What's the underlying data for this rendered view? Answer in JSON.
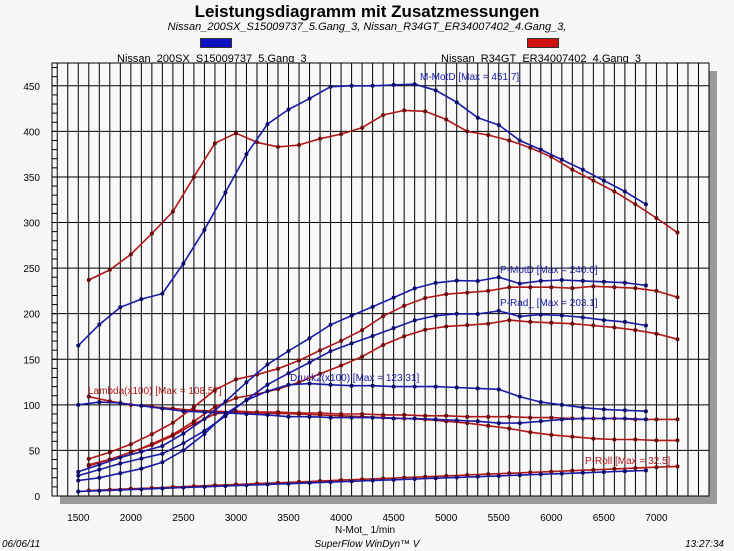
{
  "chart_data": {
    "type": "line",
    "title": "Leistungsdiagramm mit Zusatzmessungen",
    "subtitle": "Nissan_200SX_S15009737_5.Gang_3, Nissan_R34GT_ER34007402_4.Gang_3,",
    "xlabel": "N-Mot_ 1/min",
    "ylabel": "",
    "xlim": [
      1250,
      7500
    ],
    "ylim": [
      0,
      475
    ],
    "xticks": [
      1500,
      2000,
      2500,
      3000,
      3500,
      4000,
      4500,
      5000,
      5500,
      6000,
      6500,
      7000
    ],
    "yticks": [
      0,
      50,
      100,
      150,
      200,
      250,
      300,
      350,
      400,
      450
    ],
    "grid": true,
    "legend_position": "top",
    "datasets": [
      {
        "name": "Nissan_200SX_S15009737_5.Gang_3",
        "color": "#1a1aa8",
        "x": [
          1500,
          1700,
          1900,
          2100,
          2300,
          2500,
          2700,
          2900,
          3100,
          3300,
          3500,
          3700,
          3900,
          4100,
          4300,
          4500,
          4700,
          4900,
          5100,
          5300,
          5500,
          5700,
          5900,
          6100,
          6300,
          6500,
          6700,
          6900
        ],
        "series": [
          {
            "name": "M-MotD",
            "values": [
              165,
              188,
              207,
              216,
              222,
              255,
              292,
              333,
              375,
              408,
              424,
              436,
              449,
              450,
              450,
              451,
              451.7,
              445,
              432,
              415,
              407,
              390,
              380,
              369,
              358,
              346,
              334,
              320
            ]
          },
          {
            "name": "P-MotD",
            "values": [
              26.5,
              34.3,
              42.2,
              48.6,
              54.8,
              68.4,
              84.5,
              103.6,
              124.7,
              144.4,
              159.1,
              173,
              187.8,
              197.9,
              207.5,
              217.6,
              227.7,
              233.8,
              236.3,
              235.9,
              240,
              233,
              236,
              237,
              236,
              235,
              234,
              231
            ]
          },
          {
            "name": "P-Rad_",
            "values": [
              22.4,
              29,
              35.7,
              41.1,
              46.4,
              57.9,
              71.5,
              87.6,
              105.5,
              122.2,
              134.6,
              146.4,
              158.9,
              167.4,
              175.5,
              184.1,
              192.6,
              197.8,
              199.9,
              199.6,
              203.1,
              197,
              199,
              198,
              196,
              193,
              191,
              187
            ]
          },
          {
            "name": "Druck2(x100)",
            "values": [
              17,
              20,
              25,
              30,
              37,
              50,
              68,
              90,
              105,
              115,
              122,
              123.3,
              122,
              121,
              121,
              120,
              120,
              120,
              119,
              118,
              117,
              109,
              103,
              100,
              97,
              95,
              94,
              93
            ]
          },
          {
            "name": "Lambda(x100)",
            "values": [
              100,
              103,
              102,
              99,
              96,
              93,
              92,
              91,
              90,
              89,
              87,
              87,
              86,
              86,
              86,
              85,
              85,
              84,
              83,
              82,
              80,
              80,
              82,
              84,
              85,
              85,
              85,
              84
            ]
          },
          {
            "name": "P-Roll",
            "values": [
              5,
              5.8,
              6.7,
              7.5,
              8.4,
              9.3,
              10.1,
              11,
              11.8,
              12.7,
              13.5,
              14.4,
              15.2,
              16.1,
              17,
              17.8,
              18.7,
              19.5,
              20.4,
              21.2,
              22.1,
              22.9,
              23.8,
              24.6,
              25.5,
              26.3,
              27.2,
              28
            ]
          }
        ]
      },
      {
        "name": "Nissan_R34GT_ER34007402_4.Gang_3",
        "color": "#b01818",
        "x": [
          1600,
          1800,
          2000,
          2200,
          2400,
          2600,
          2800,
          3000,
          3200,
          3400,
          3600,
          3800,
          4000,
          4200,
          4400,
          4600,
          4800,
          5000,
          5200,
          5400,
          5600,
          5800,
          6000,
          6200,
          6400,
          6600,
          6800,
          7000,
          7200
        ],
        "series": [
          {
            "name": "M-MotD",
            "values": [
              237,
              248,
              265,
              288,
              312,
              350,
              387,
              398,
              388,
              383,
              385,
              392,
              397,
              404,
              418,
              423,
              422,
              413,
              400,
              396,
              390,
              382,
              372,
              358,
              346,
              334,
              320,
              305,
              289
            ]
          },
          {
            "name": "P-MotD",
            "values": [
              40.7,
              47.9,
              56.8,
              67.9,
              80.3,
              97.6,
              116.2,
              128,
              133.1,
              139.6,
              148.6,
              159.7,
              170.3,
              182,
              197.2,
              208.7,
              217.2,
              221.4,
              223.1,
              225,
              229,
              229,
              229,
              228,
              230,
              229,
              228,
              225,
              218
            ]
          },
          {
            "name": "P-Rad_",
            "values": [
              34.2,
              40.2,
              47.7,
              57,
              67.5,
              82,
              97.6,
              107.5,
              111.8,
              117.3,
              124.8,
              134.1,
              143.1,
              152.9,
              165.6,
              175.3,
              182.4,
              186,
              187.4,
              189,
              193,
              191,
              190,
              189,
              187,
              185,
              182,
              178,
              172
            ]
          },
          {
            "name": "Druck2(x100)",
            "values": [
              33,
              40,
              48,
              56,
              66,
              79,
              90,
              93,
              92,
              92,
              91,
              91,
              90,
              90,
              89,
              89,
              88,
              88,
              87,
              87,
              87,
              86,
              86,
              85,
              85,
              85,
              84,
              84,
              84
            ]
          },
          {
            "name": "Lambda(x100)",
            "values": [
              109,
              104,
              100,
              98,
              96,
              94,
              93,
              92,
              91,
              90.5,
              90,
              89,
              88,
              87,
              86,
              85,
              84,
              82,
              80,
              77,
              74,
              70,
              67,
              65,
              63,
              62,
              62,
              61,
              61
            ]
          },
          {
            "name": "P-Roll",
            "values": [
              6,
              6.9,
              7.9,
              8.8,
              9.8,
              10.7,
              11.7,
              12.6,
              13.6,
              14.5,
              15.5,
              16.4,
              17.4,
              18.3,
              19.2,
              20.2,
              21.1,
              22.1,
              23,
              24,
              24.9,
              25.9,
              26.8,
              27.8,
              28.7,
              29.7,
              30.6,
              31.6,
              32.5
            ]
          }
        ]
      }
    ],
    "annotations": [
      {
        "text": "M-MotD [Max = 451.7]",
        "series": "Nissan_200SX_S15009737_5.Gang_3",
        "color": "#1a1aa8"
      },
      {
        "text": "P-MotD [Max = 240.0]",
        "series": "Nissan_200SX_S15009737_5.Gang_3",
        "color": "#1a1aa8"
      },
      {
        "text": "P-Rad_ [Max = 203.1]",
        "series": "Nissan_200SX_S15009737_5.Gang_3",
        "color": "#1a1aa8"
      },
      {
        "text": "Druck2(x100) [Max = 123.31]",
        "series": "Nissan_200SX_S15009737_5.Gang_3",
        "color": "#1a1aa8"
      },
      {
        "text": "Lambda(x100) [Max = 108.57]",
        "series": "Nissan_R34GT_ER34007402_4.Gang_3",
        "color": "#b01818"
      },
      {
        "text": "P-Roll [Max = 32.5]",
        "series": "Nissan_R34GT_ER34007402_4.Gang_3",
        "color": "#b01818"
      }
    ]
  },
  "footer": {
    "date": "06/06/11",
    "software": "SuperFlow WinDyn™ V",
    "time": "13:27:34"
  }
}
